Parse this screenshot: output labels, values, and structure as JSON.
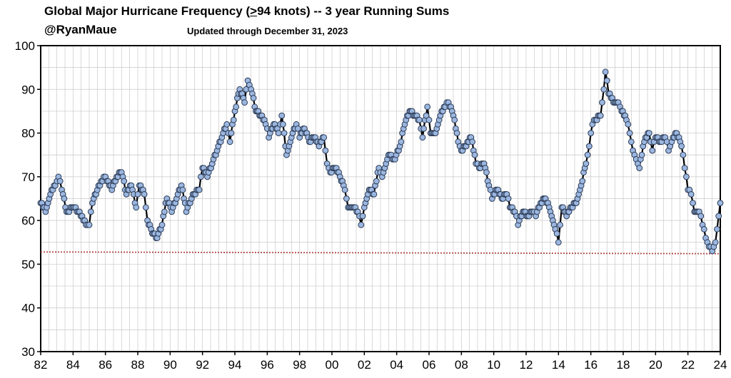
{
  "header": {
    "title_pre": "Global Major Hurricane Frequency (",
    "title_ul": ">",
    "title_post": "94 knots)  -- 3 year Running Sums",
    "handle": "@RyanMaue",
    "updated": "Updated through December 31, 2023"
  },
  "chart_data": {
    "type": "line",
    "title": "Global Major Hurricane Frequency (>94 knots)  -- 3 year Running Sums",
    "subtitle": "Updated through December 31, 2023",
    "xlabel": "",
    "ylabel": "",
    "xlim": [
      1982,
      2024
    ],
    "ylim": [
      30,
      100
    ],
    "x_tick_labels": [
      "82",
      "84",
      "86",
      "88",
      "90",
      "92",
      "94",
      "96",
      "98",
      "00",
      "02",
      "04",
      "06",
      "08",
      "10",
      "12",
      "14",
      "16",
      "18",
      "20",
      "22",
      "24"
    ],
    "y_tick_labels": [
      "30",
      "40",
      "50",
      "60",
      "70",
      "80",
      "90",
      "100"
    ],
    "grid": true,
    "series_color": "#000000",
    "marker_fill": "#9bb7e0",
    "marker_stroke": "#2b3a55",
    "reference_line": {
      "value": 52.8,
      "end_value": 52.4,
      "color": "#b04a4a",
      "style": "dotted"
    },
    "anchors": [
      [
        1982.0,
        64
      ],
      [
        1982.3,
        62
      ],
      [
        1982.6,
        66
      ],
      [
        1982.9,
        68
      ],
      [
        1983.1,
        70
      ],
      [
        1983.3,
        67
      ],
      [
        1983.6,
        62
      ],
      [
        1984.0,
        63
      ],
      [
        1984.4,
        62
      ],
      [
        1984.8,
        59
      ],
      [
        1985.0,
        59
      ],
      [
        1985.2,
        64
      ],
      [
        1985.5,
        67
      ],
      [
        1985.9,
        70
      ],
      [
        1986.1,
        69
      ],
      [
        1986.4,
        67
      ],
      [
        1986.7,
        70
      ],
      [
        1987.0,
        71
      ],
      [
        1987.3,
        66
      ],
      [
        1987.6,
        68
      ],
      [
        1987.9,
        63
      ],
      [
        1988.1,
        68
      ],
      [
        1988.4,
        66
      ],
      [
        1988.6,
        60
      ],
      [
        1988.9,
        57
      ],
      [
        1989.2,
        56
      ],
      [
        1989.5,
        59
      ],
      [
        1989.8,
        65
      ],
      [
        1990.1,
        62
      ],
      [
        1990.4,
        65
      ],
      [
        1990.7,
        68
      ],
      [
        1991.0,
        62
      ],
      [
        1991.4,
        66
      ],
      [
        1991.8,
        67
      ],
      [
        1992.0,
        72
      ],
      [
        1992.3,
        70
      ],
      [
        1992.6,
        73
      ],
      [
        1992.9,
        76
      ],
      [
        1993.2,
        79
      ],
      [
        1993.5,
        82
      ],
      [
        1993.7,
        78
      ],
      [
        1994.0,
        85
      ],
      [
        1994.3,
        90
      ],
      [
        1994.6,
        87
      ],
      [
        1994.8,
        92
      ],
      [
        1995.0,
        90
      ],
      [
        1995.3,
        85
      ],
      [
        1995.6,
        84
      ],
      [
        1995.9,
        82
      ],
      [
        1996.1,
        79
      ],
      [
        1996.4,
        82
      ],
      [
        1996.7,
        80
      ],
      [
        1996.9,
        84
      ],
      [
        1997.2,
        75
      ],
      [
        1997.5,
        79
      ],
      [
        1997.8,
        82
      ],
      [
        1998.0,
        79
      ],
      [
        1998.3,
        81
      ],
      [
        1998.6,
        78
      ],
      [
        1998.9,
        79
      ],
      [
        1999.2,
        77
      ],
      [
        1999.5,
        79
      ],
      [
        1999.7,
        73
      ],
      [
        1999.9,
        71
      ],
      [
        2000.2,
        72
      ],
      [
        2000.5,
        70
      ],
      [
        2000.8,
        67
      ],
      [
        2001.0,
        63
      ],
      [
        2001.3,
        63
      ],
      [
        2001.6,
        62
      ],
      [
        2001.8,
        59
      ],
      [
        2002.0,
        63
      ],
      [
        2002.3,
        67
      ],
      [
        2002.6,
        66
      ],
      [
        2002.9,
        72
      ],
      [
        2003.1,
        70
      ],
      [
        2003.5,
        75
      ],
      [
        2003.9,
        74
      ],
      [
        2004.2,
        77
      ],
      [
        2004.5,
        82
      ],
      [
        2004.8,
        85
      ],
      [
        2005.1,
        84
      ],
      [
        2005.4,
        83
      ],
      [
        2005.6,
        79
      ],
      [
        2005.9,
        86
      ],
      [
        2006.1,
        80
      ],
      [
        2006.4,
        80
      ],
      [
        2006.7,
        84
      ],
      [
        2007.0,
        86
      ],
      [
        2007.2,
        87
      ],
      [
        2007.5,
        84
      ],
      [
        2007.8,
        78
      ],
      [
        2008.0,
        76
      ],
      [
        2008.3,
        77
      ],
      [
        2008.6,
        79
      ],
      [
        2008.9,
        73
      ],
      [
        2009.1,
        72
      ],
      [
        2009.4,
        73
      ],
      [
        2009.7,
        68
      ],
      [
        2009.9,
        65
      ],
      [
        2010.2,
        67
      ],
      [
        2010.5,
        65
      ],
      [
        2010.8,
        66
      ],
      [
        2011.0,
        63
      ],
      [
        2011.3,
        62
      ],
      [
        2011.5,
        59
      ],
      [
        2011.8,
        62
      ],
      [
        2012.1,
        61
      ],
      [
        2012.4,
        62
      ],
      [
        2012.6,
        61
      ],
      [
        2012.9,
        64
      ],
      [
        2013.2,
        65
      ],
      [
        2013.5,
        62
      ],
      [
        2013.8,
        58
      ],
      [
        2014.0,
        55
      ],
      [
        2014.2,
        63
      ],
      [
        2014.5,
        61
      ],
      [
        2014.8,
        63
      ],
      [
        2015.1,
        64
      ],
      [
        2015.4,
        68
      ],
      [
        2015.7,
        73
      ],
      [
        2015.9,
        77
      ],
      [
        2016.1,
        82
      ],
      [
        2016.3,
        83
      ],
      [
        2016.6,
        84
      ],
      [
        2016.8,
        90
      ],
      [
        2016.9,
        94
      ],
      [
        2017.1,
        89
      ],
      [
        2017.4,
        87
      ],
      [
        2017.7,
        87
      ],
      [
        2017.9,
        85
      ],
      [
        2018.2,
        83
      ],
      [
        2018.4,
        80
      ],
      [
        2018.6,
        76
      ],
      [
        2018.8,
        74
      ],
      [
        2019.0,
        72
      ],
      [
        2019.3,
        78
      ],
      [
        2019.6,
        80
      ],
      [
        2019.8,
        76
      ],
      [
        2020.0,
        79
      ],
      [
        2020.3,
        78
      ],
      [
        2020.6,
        79
      ],
      [
        2020.8,
        76
      ],
      [
        2021.0,
        78
      ],
      [
        2021.3,
        80
      ],
      [
        2021.6,
        77
      ],
      [
        2021.8,
        72
      ],
      [
        2022.0,
        67
      ],
      [
        2022.2,
        66
      ],
      [
        2022.4,
        62
      ],
      [
        2022.7,
        62
      ],
      [
        2022.9,
        59
      ],
      [
        2023.1,
        56
      ],
      [
        2023.3,
        54
      ],
      [
        2023.5,
        53
      ],
      [
        2023.7,
        55
      ],
      [
        2023.9,
        61
      ],
      [
        2024.0,
        64
      ]
    ]
  }
}
